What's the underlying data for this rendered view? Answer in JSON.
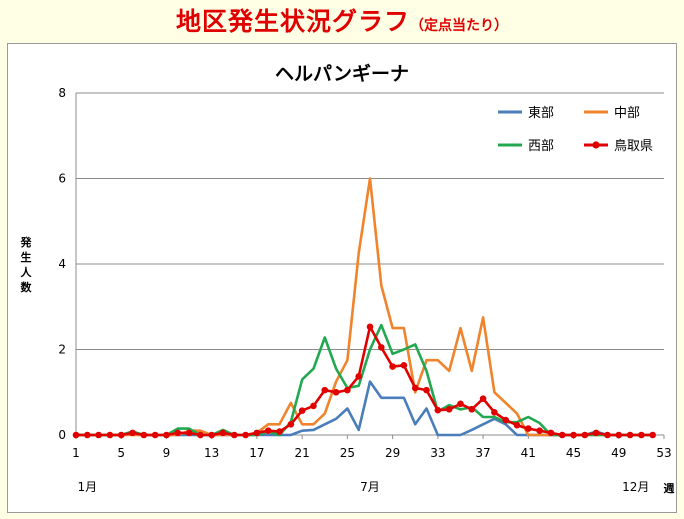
{
  "page": {
    "title_main": "地区発生状況グラフ",
    "title_sub": "（定点当たり）"
  },
  "chart_data": {
    "type": "line",
    "title": "ヘルパンギーナ",
    "ylabel": "発生人数",
    "ylim": [
      0,
      8
    ],
    "yticks": [
      0,
      2,
      4,
      6,
      8
    ],
    "xlim": [
      1,
      53
    ],
    "xticks": [
      1,
      5,
      9,
      13,
      17,
      21,
      25,
      29,
      33,
      37,
      41,
      45,
      49,
      53
    ],
    "month_labels": [
      {
        "x": 2,
        "text": "1月"
      },
      {
        "x": 27,
        "text": "7月"
      },
      {
        "x": 50.5,
        "text": "12月"
      }
    ],
    "week_unit": "週",
    "grid": "horizontal",
    "legend_position": "top-right",
    "x": [
      1,
      2,
      3,
      4,
      5,
      6,
      7,
      8,
      9,
      10,
      11,
      12,
      13,
      14,
      15,
      16,
      17,
      18,
      19,
      20,
      21,
      22,
      23,
      24,
      25,
      26,
      27,
      28,
      29,
      30,
      31,
      32,
      33,
      34,
      35,
      36,
      37,
      38,
      39,
      40,
      41,
      42,
      43,
      44,
      45,
      46,
      47,
      48,
      49,
      50,
      51,
      52
    ],
    "series": [
      {
        "name": "東部",
        "color": "#4a7ebb",
        "marker": "none",
        "values": [
          0,
          0,
          0,
          0,
          0,
          0.08,
          0,
          0,
          0,
          0,
          0,
          0,
          0,
          0,
          0,
          0,
          0,
          0,
          0,
          0,
          0.1,
          0.12,
          0.25,
          0.38,
          0.62,
          0.12,
          1.25,
          0.87,
          0.87,
          0.87,
          0.25,
          0.62,
          0,
          0,
          0,
          0.12,
          0.25,
          0.38,
          0.25,
          0,
          0,
          0,
          0,
          0,
          0,
          0,
          0.08,
          0,
          0,
          0,
          0,
          0
        ]
      },
      {
        "name": "中部",
        "color": "#f0842c",
        "marker": "none",
        "values": [
          0,
          0,
          0,
          0,
          0,
          0,
          0,
          0,
          0,
          0,
          0.1,
          0.1,
          0,
          0,
          0,
          0,
          0.05,
          0.25,
          0.25,
          0.75,
          0.25,
          0.25,
          0.5,
          1.25,
          1.75,
          4.25,
          6.0,
          3.5,
          2.5,
          2.5,
          1.0,
          1.75,
          1.75,
          1.5,
          2.5,
          1.5,
          2.75,
          1.0,
          0.75,
          0.5,
          0,
          0,
          0,
          0,
          0,
          0,
          0,
          0,
          0,
          0,
          0,
          0
        ]
      },
      {
        "name": "西部",
        "color": "#21a850",
        "marker": "none",
        "values": [
          0,
          0,
          0,
          0,
          0,
          0.08,
          0,
          0,
          0,
          0.15,
          0.15,
          0,
          0,
          0.12,
          0,
          0,
          0,
          0.08,
          0,
          0.3,
          1.3,
          1.55,
          2.28,
          1.55,
          1.1,
          1.15,
          2.0,
          2.57,
          1.9,
          2.0,
          2.12,
          1.5,
          0.55,
          0.7,
          0.6,
          0.65,
          0.42,
          0.42,
          0.3,
          0.3,
          0.42,
          0.28,
          0,
          0,
          0,
          0,
          0,
          0,
          0,
          0,
          0,
          0
        ]
      },
      {
        "name": "鳥取県",
        "color": "#e00000",
        "marker": "circle",
        "values": [
          0,
          0,
          0,
          0,
          0,
          0.05,
          0,
          0,
          0,
          0.05,
          0.05,
          0,
          0,
          0.05,
          0,
          0,
          0.05,
          0.1,
          0.08,
          0.25,
          0.57,
          0.68,
          1.05,
          1.0,
          1.05,
          1.37,
          2.53,
          2.05,
          1.6,
          1.63,
          1.1,
          1.05,
          0.58,
          0.6,
          0.73,
          0.6,
          0.85,
          0.53,
          0.35,
          0.23,
          0.15,
          0.1,
          0.05,
          0,
          0,
          0,
          0.05,
          0,
          0,
          0,
          0,
          0
        ]
      }
    ]
  }
}
